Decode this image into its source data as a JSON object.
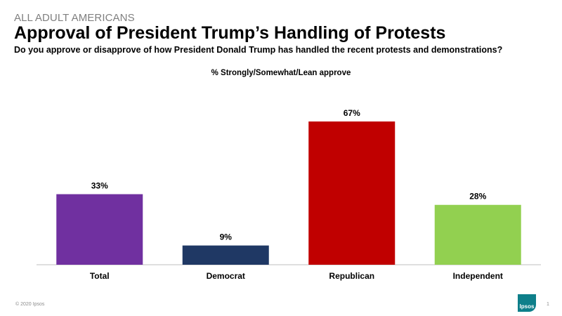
{
  "header": {
    "kicker": "ALL ADULT AMERICANS",
    "title": "Approval of President Trump’s Handling of Protests",
    "question": "Do you approve or disapprove of how President Donald Trump has handled the recent protests and demonstrations?"
  },
  "chart_data": {
    "type": "bar",
    "title": "% Strongly/Somewhat/Lean approve",
    "categories": [
      "Total",
      "Democrat",
      "Republican",
      "Independent"
    ],
    "values": [
      33,
      9,
      67,
      28
    ],
    "value_labels": [
      "33%",
      "9%",
      "67%",
      "28%"
    ],
    "colors": [
      "#7030a0",
      "#1f3864",
      "#c00000",
      "#92d050"
    ],
    "ylim": [
      0,
      67
    ],
    "grid": false,
    "legend": "none"
  },
  "footer": {
    "copyright": "© 2020 Ipsos",
    "logo_text": "Ipsos",
    "page_number": "1"
  }
}
